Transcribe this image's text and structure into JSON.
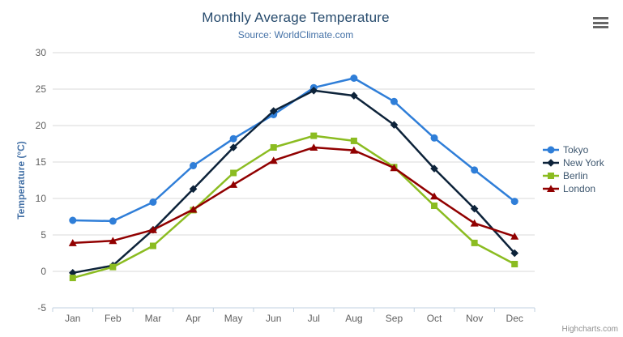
{
  "chart_data": {
    "type": "line",
    "title": "Monthly Average Temperature",
    "subtitle": "Source: WorldClimate.com",
    "xlabel": "",
    "ylabel": "Temperature (°C)",
    "categories": [
      "Jan",
      "Feb",
      "Mar",
      "Apr",
      "May",
      "Jun",
      "Jul",
      "Aug",
      "Sep",
      "Oct",
      "Nov",
      "Dec"
    ],
    "series": [
      {
        "name": "Tokyo",
        "color": "#2f7ed8",
        "marker": "circle",
        "values": [
          7.0,
          6.9,
          9.5,
          14.5,
          18.2,
          21.5,
          25.2,
          26.5,
          23.3,
          18.3,
          13.9,
          9.6
        ]
      },
      {
        "name": "New York",
        "color": "#0d233a",
        "marker": "diamond",
        "values": [
          -0.2,
          0.8,
          5.7,
          11.3,
          17.0,
          22.0,
          24.8,
          24.1,
          20.1,
          14.1,
          8.6,
          2.5
        ]
      },
      {
        "name": "Berlin",
        "color": "#8bbc21",
        "marker": "square",
        "values": [
          -0.9,
          0.6,
          3.5,
          8.4,
          13.5,
          17.0,
          18.6,
          17.9,
          14.3,
          9.0,
          3.9,
          1.0
        ]
      },
      {
        "name": "London",
        "color": "#910000",
        "marker": "triangle",
        "values": [
          3.9,
          4.2,
          5.7,
          8.5,
          11.9,
          15.2,
          17.0,
          16.6,
          14.2,
          10.3,
          6.6,
          4.8
        ]
      }
    ],
    "ylim": [
      -5,
      30
    ],
    "yticks": [
      -5,
      0,
      5,
      10,
      15,
      20,
      25,
      30
    ],
    "grid": true,
    "legend_position": "right"
  },
  "theme": {
    "grid_color": "#d8d8d8",
    "axis_line_color": "#c0d0e0",
    "tick_label_color": "#606060",
    "axis_title_color": "#4572a7",
    "legend_text_color": "#3e576f",
    "title_color": "#274b6d",
    "subtitle_color": "#4572a7"
  },
  "credits": {
    "label": "Highcharts.com"
  }
}
